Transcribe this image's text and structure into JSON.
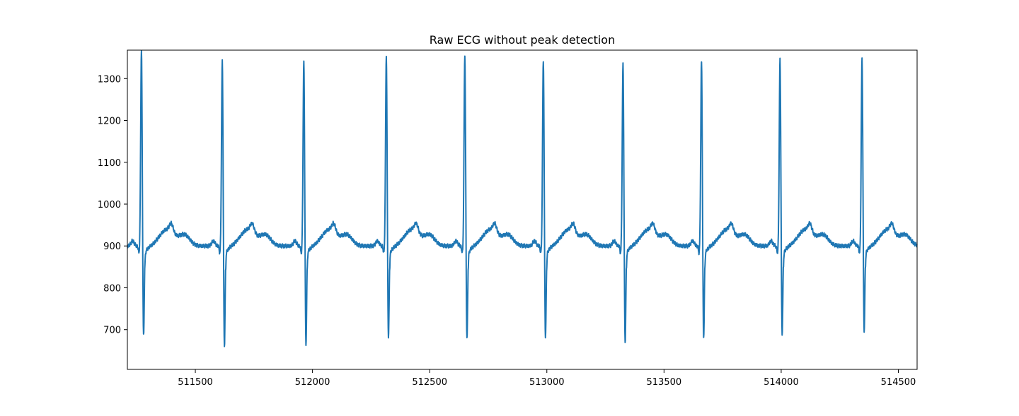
{
  "chart_data": {
    "type": "line",
    "title": "Raw ECG without peak detection",
    "xlabel": "",
    "ylabel": "",
    "xlim": [
      511210,
      514580
    ],
    "ylim": [
      605,
      1368
    ],
    "grid": false,
    "legend": "none",
    "x_ticks": [
      511500,
      512000,
      512500,
      513000,
      513500,
      514000,
      514500
    ],
    "y_ticks": [
      700,
      800,
      900,
      1000,
      1100,
      1200,
      1300
    ],
    "line_color": "#1f77b4",
    "series": [
      {
        "beat_peaks": [
          {
            "x": 511270,
            "r": 1358,
            "s": 682
          },
          {
            "x": 511615,
            "r": 1333,
            "s": 659
          },
          {
            "x": 511963,
            "r": 1330,
            "s": 663
          },
          {
            "x": 512315,
            "r": 1345,
            "s": 679
          },
          {
            "x": 512650,
            "r": 1347,
            "s": 676
          },
          {
            "x": 512985,
            "r": 1335,
            "s": 679
          },
          {
            "x": 513325,
            "r": 1325,
            "s": 668
          },
          {
            "x": 513660,
            "r": 1330,
            "s": 681
          },
          {
            "x": 513995,
            "r": 1335,
            "s": 688
          },
          {
            "x": 514345,
            "r": 1339,
            "s": 696
          }
        ],
        "baseline": 900,
        "t_wave_peak": 955
      }
    ]
  }
}
